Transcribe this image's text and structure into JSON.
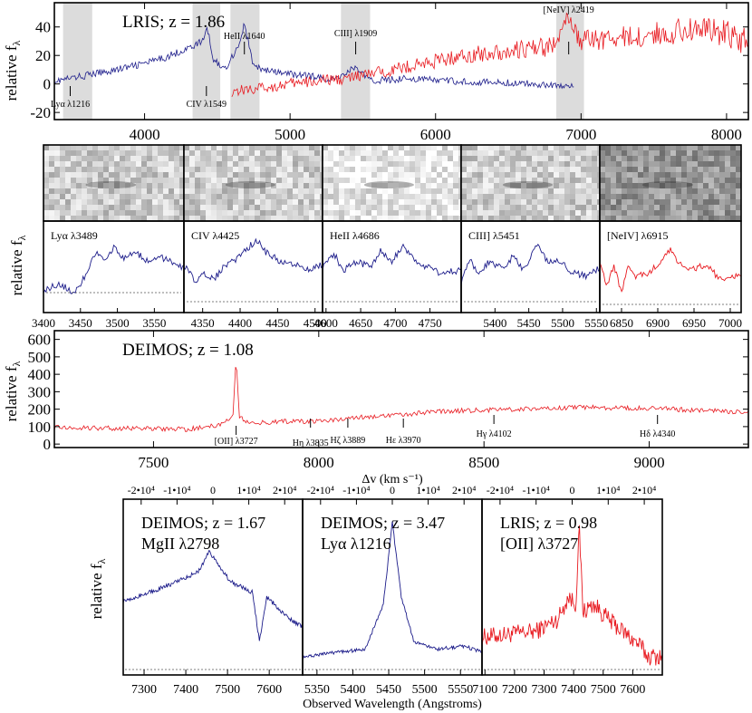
{
  "chart_data": [
    {
      "type": "line",
      "panel": "LRIS composite",
      "title": "LRIS; z = 1.86",
      "ylabel": "relative fλ",
      "xlim": [
        3380,
        8150
      ],
      "ylim": [
        -25,
        57
      ],
      "xticks": [
        4000,
        5000,
        6000,
        7000,
        8000
      ],
      "yticks": [
        -20,
        0,
        20,
        40
      ],
      "colors": {
        "blue": "#1c1c8a",
        "red": "#e8191f",
        "band": "#dcdcdc"
      },
      "bands": [
        [
          3440,
          3640
        ],
        [
          4330,
          4520
        ],
        [
          4590,
          4790
        ],
        [
          5350,
          5550
        ],
        [
          6830,
          7020
        ]
      ],
      "lines": [
        {
          "label": "Lyα λ1216",
          "x": 3489
        },
        {
          "label": "CIV λ1549",
          "x": 4425
        },
        {
          "label": "HeII λ1640",
          "x": 4686
        },
        {
          "label": "CIII] λ1909",
          "x": 5451
        },
        {
          "label": "[NeIV] λ2419",
          "x": 6915
        }
      ],
      "series": [
        {
          "color": "blue",
          "x": [
            3380,
            3500,
            3700,
            3900,
            4100,
            4300,
            4400,
            4430,
            4470,
            4550,
            4650,
            4686,
            4750,
            4900,
            5100,
            5300,
            5451,
            5550,
            5800,
            6100,
            6400,
            6700,
            6950
          ],
          "y": [
            2,
            4,
            8,
            12,
            17,
            25,
            30,
            40,
            18,
            10,
            28,
            42,
            12,
            8,
            6,
            3,
            12,
            2,
            4,
            2,
            1,
            0,
            -2
          ]
        },
        {
          "color": "red",
          "x": [
            4600,
            4800,
            5000,
            5200,
            5400,
            5600,
            5800,
            6000,
            6200,
            6400,
            6600,
            6800,
            6900,
            7000,
            7200,
            7400,
            7600,
            7800,
            8000,
            8150
          ],
          "y": [
            -5,
            -3,
            0,
            2,
            4,
            8,
            12,
            16,
            20,
            22,
            24,
            26,
            45,
            30,
            32,
            33,
            36,
            40,
            35,
            30
          ]
        }
      ]
    },
    {
      "type": "line",
      "panel": "LRIS line zooms",
      "ylabel": "relative fλ",
      "subpanels": [
        {
          "label": "Lyα λ3489",
          "color": "blue",
          "xlim": [
            3400,
            3590
          ],
          "xticks": [
            3400,
            3450,
            3500,
            3550
          ],
          "tick_labels": [
            "3400",
            "3450",
            "3500",
            "3550"
          ]
        },
        {
          "label": "CIV λ4425",
          "color": "blue",
          "xlim": [
            4325,
            4510
          ],
          "xticks": [
            4350,
            4400,
            4450,
            4500
          ],
          "tick_labels": [
            "4350",
            "4400",
            "4450",
            "4500"
          ]
        },
        {
          "label": "HeII λ4686",
          "color": "blue",
          "xlim": [
            4595,
            4795
          ],
          "xticks": [
            4600,
            4650,
            4700,
            4750
          ],
          "tick_labels": [
            "4600",
            "4650",
            "4700",
            "4750"
          ]
        },
        {
          "label": "CIII] λ5451",
          "color": "blue",
          "xlim": [
            5350,
            5555
          ],
          "xticks": [
            5400,
            5450,
            5500,
            5550
          ],
          "tick_labels": [
            "5400",
            "5450",
            "5500",
            "5550"
          ]
        },
        {
          "label": "[NeIV] λ6915",
          "color": "red",
          "xlim": [
            6820,
            7015
          ],
          "xticks": [
            6850,
            6900,
            6950,
            7000
          ],
          "tick_labels": [
            "6850",
            "6900",
            "6950",
            "7000"
          ]
        }
      ]
    },
    {
      "type": "line",
      "panel": "DEIMOS z=1.08",
      "title": "DEIMOS; z = 1.08",
      "ylabel": "relative fλ",
      "xlim": [
        7200,
        9300
      ],
      "ylim": [
        -20,
        650
      ],
      "xticks": [
        7500,
        8000,
        8500,
        9000
      ],
      "yticks": [
        0,
        100,
        200,
        300,
        400,
        500,
        600
      ],
      "color": "#e8191f",
      "lines": [
        {
          "label": "[OII] λ3727",
          "x": 7750
        },
        {
          "label": "Hη λ3835",
          "x": 7975
        },
        {
          "label": "Hζ λ3889",
          "x": 8088
        },
        {
          "label": "Hε λ3970",
          "x": 8256
        },
        {
          "label": "Hγ λ4102",
          "x": 8530
        },
        {
          "label": "Hδ λ4340",
          "x": 9025
        }
      ],
      "series": [
        {
          "x": [
            7200,
            7400,
            7600,
            7700,
            7740,
            7750,
            7760,
            7800,
            7900,
            8000,
            8100,
            8250,
            8400,
            8600,
            8800,
            9000,
            9200,
            9300
          ],
          "y": [
            95,
            90,
            85,
            110,
            150,
            500,
            150,
            120,
            130,
            130,
            150,
            170,
            190,
            200,
            210,
            205,
            190,
            180
          ]
        }
      ]
    },
    {
      "type": "line",
      "panel": "Velocity panels",
      "xlabel_top": "Δv (km s⁻¹)",
      "xlabel": "Observed Wavelength (Angstroms)",
      "ylabel": "relative fλ",
      "vel_ticks": [
        -20000,
        -10000,
        0,
        10000,
        20000
      ],
      "vel_tick_labels": [
        "-2•10⁴",
        "-1•10⁴",
        "0",
        "1•10⁴",
        "2•10⁴"
      ],
      "subpanels": [
        {
          "title": [
            "DEIMOS; z = 1.67",
            "MgII λ2798"
          ],
          "color": "blue",
          "xlim": [
            7250,
            7680
          ],
          "xticks": [
            7300,
            7400,
            7500,
            7600
          ],
          "tick_labels": [
            "7300",
            "7400",
            "7500",
            "7600"
          ]
        },
        {
          "title": [
            "DEIMOS; z = 3.47",
            "Lyα λ1216"
          ],
          "color": "blue",
          "xlim": [
            5330,
            5580
          ],
          "xticks": [
            5350,
            5400,
            5450,
            5500,
            5550
          ],
          "tick_labels": [
            "5350",
            "5400",
            "5450",
            "5500",
            "5550"
          ]
        },
        {
          "title": [
            "LRIS; z = 0.98",
            "[OII] λ3727"
          ],
          "color": "red",
          "xlim": [
            7090,
            7700
          ],
          "xticks": [
            7100,
            7200,
            7300,
            7400,
            7500,
            7600
          ],
          "tick_labels": [
            "7100",
            "7200",
            "7300",
            "7400",
            "7500",
            "7600"
          ]
        }
      ]
    }
  ]
}
